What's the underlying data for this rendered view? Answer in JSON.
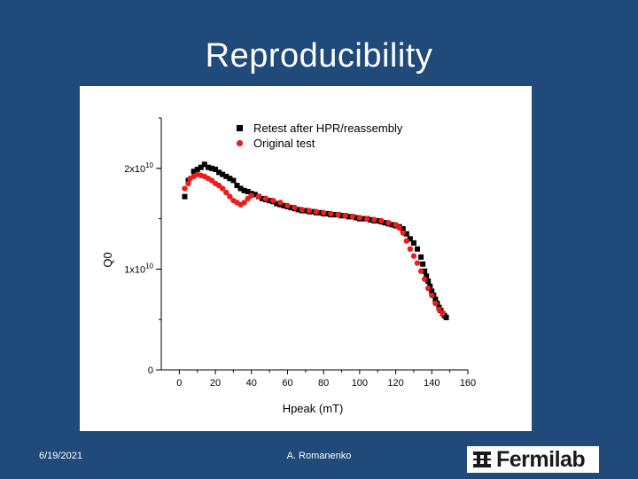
{
  "slide": {
    "title": "Reproducibility",
    "footer_date": "6/19/2021",
    "footer_author": "A. Romanenko",
    "logo_text": "Fermilab"
  },
  "colors": {
    "background": "#1f4a7a",
    "retest": "#000000",
    "original": "#ee1c1c"
  },
  "chart_data": {
    "type": "scatter",
    "xlabel": "Hpeak (mT)",
    "ylabel": "Q0",
    "xlim": [
      -10,
      160
    ],
    "ylim": [
      0,
      25000000000.0
    ],
    "x_ticks": [
      0,
      20,
      40,
      60,
      80,
      100,
      120,
      140,
      160
    ],
    "y_ticks": [
      {
        "value": 0,
        "mantissa": "0",
        "exp": ""
      },
      {
        "value": 10000000000.0,
        "mantissa": "1x10",
        "exp": "10"
      },
      {
        "value": 20000000000.0,
        "mantissa": "2x10",
        "exp": "10"
      }
    ],
    "legend_position": "top-left",
    "grid": false,
    "series": [
      {
        "name": "Retest after HPR/reassembly",
        "marker": "square",
        "color": "#000000",
        "points": [
          [
            3,
            17200000000.0
          ],
          [
            5,
            18800000000.0
          ],
          [
            8,
            19700000000.0
          ],
          [
            10,
            19900000000.0
          ],
          [
            12,
            20100000000.0
          ],
          [
            14,
            20400000000.0
          ],
          [
            16,
            20100000000.0
          ],
          [
            18,
            20000000000.0
          ],
          [
            20,
            19900000000.0
          ],
          [
            22,
            19600000000.0
          ],
          [
            24,
            19400000000.0
          ],
          [
            26,
            19200000000.0
          ],
          [
            28,
            19000000000.0
          ],
          [
            30,
            18800000000.0
          ],
          [
            32,
            18300000000.0
          ],
          [
            34,
            18000000000.0
          ],
          [
            36,
            17800000000.0
          ],
          [
            38,
            17700000000.0
          ],
          [
            40,
            17500000000.0
          ],
          [
            42,
            17400000000.0
          ],
          [
            44,
            17200000000.0
          ],
          [
            46,
            17000000000.0
          ],
          [
            48,
            16900000000.0
          ],
          [
            50,
            16800000000.0
          ],
          [
            52,
            16700000000.0
          ],
          [
            54,
            16500000000.0
          ],
          [
            56,
            16400000000.0
          ],
          [
            58,
            16300000000.0
          ],
          [
            60,
            16200000000.0
          ],
          [
            62,
            16100000000.0
          ],
          [
            64,
            16000000000.0
          ],
          [
            66,
            15900000000.0
          ],
          [
            68,
            15800000000.0
          ],
          [
            70,
            15800000000.0
          ],
          [
            72,
            15700000000.0
          ],
          [
            74,
            15700000000.0
          ],
          [
            76,
            15600000000.0
          ],
          [
            78,
            15600000000.0
          ],
          [
            80,
            15500000000.0
          ],
          [
            82,
            15500000000.0
          ],
          [
            84,
            15400000000.0
          ],
          [
            86,
            15400000000.0
          ],
          [
            88,
            15400000000.0
          ],
          [
            90,
            15300000000.0
          ],
          [
            92,
            15300000000.0
          ],
          [
            94,
            15200000000.0
          ],
          [
            96,
            15200000000.0
          ],
          [
            98,
            15100000000.0
          ],
          [
            100,
            15000000000.0
          ],
          [
            102,
            15000000000.0
          ],
          [
            104,
            15000000000.0
          ],
          [
            106,
            14900000000.0
          ],
          [
            108,
            14800000000.0
          ],
          [
            110,
            14800000000.0
          ],
          [
            112,
            14700000000.0
          ],
          [
            114,
            14600000000.0
          ],
          [
            116,
            14500000000.0
          ],
          [
            118,
            14400000000.0
          ],
          [
            120,
            14300000000.0
          ],
          [
            122,
            14200000000.0
          ],
          [
            124,
            14000000000.0
          ],
          [
            126,
            13500000000.0
          ],
          [
            128,
            13000000000.0
          ],
          [
            130,
            12600000000.0
          ],
          [
            132,
            12000000000.0
          ],
          [
            134,
            11200000000.0
          ],
          [
            135,
            10500000000.0
          ],
          [
            136,
            9800000000.0
          ],
          [
            137,
            9300000000.0
          ],
          [
            138,
            8800000000.0
          ],
          [
            139,
            8300000000.0
          ],
          [
            140,
            7800000000.0
          ],
          [
            141,
            7400000000.0
          ],
          [
            142,
            7000000000.0
          ],
          [
            143,
            6600000000.0
          ],
          [
            144,
            6200000000.0
          ],
          [
            145,
            5900000000.0
          ],
          [
            146,
            5600000000.0
          ],
          [
            147,
            5400000000.0
          ],
          [
            148,
            5200000000.0
          ]
        ]
      },
      {
        "name": "Original test",
        "marker": "circle",
        "color": "#ee1c1c",
        "points": [
          [
            3,
            18000000000.0
          ],
          [
            5,
            18500000000.0
          ],
          [
            6,
            19000000000.0
          ],
          [
            8,
            19200000000.0
          ],
          [
            10,
            19400000000.0
          ],
          [
            12,
            19300000000.0
          ],
          [
            14,
            19200000000.0
          ],
          [
            16,
            19000000000.0
          ],
          [
            18,
            18800000000.0
          ],
          [
            20,
            18500000000.0
          ],
          [
            22,
            18300000000.0
          ],
          [
            24,
            18000000000.0
          ],
          [
            26,
            17600000000.0
          ],
          [
            28,
            17200000000.0
          ],
          [
            30,
            16800000000.0
          ],
          [
            32,
            16600000000.0
          ],
          [
            34,
            16400000000.0
          ],
          [
            36,
            16600000000.0
          ],
          [
            38,
            17000000000.0
          ],
          [
            40,
            17300000000.0
          ],
          [
            44,
            17200000000.0
          ],
          [
            48,
            17000000000.0
          ],
          [
            52,
            16800000000.0
          ],
          [
            56,
            16600000000.0
          ],
          [
            60,
            16300000000.0
          ],
          [
            64,
            16100000000.0
          ],
          [
            68,
            15900000000.0
          ],
          [
            72,
            15800000000.0
          ],
          [
            76,
            15700000000.0
          ],
          [
            80,
            15600000000.0
          ],
          [
            84,
            15500000000.0
          ],
          [
            88,
            15400000000.0
          ],
          [
            92,
            15300000000.0
          ],
          [
            96,
            15200000000.0
          ],
          [
            100,
            15100000000.0
          ],
          [
            104,
            15000000000.0
          ],
          [
            108,
            14900000000.0
          ],
          [
            112,
            14800000000.0
          ],
          [
            116,
            14600000000.0
          ],
          [
            120,
            14400000000.0
          ],
          [
            122,
            14100000000.0
          ],
          [
            124,
            13600000000.0
          ],
          [
            126,
            12800000000.0
          ],
          [
            128,
            12000000000.0
          ],
          [
            130,
            11300000000.0
          ],
          [
            132,
            10600000000.0
          ],
          [
            134,
            9800000000.0
          ],
          [
            136,
            9000000000.0
          ],
          [
            138,
            8100000000.0
          ],
          [
            140,
            7400000000.0
          ],
          [
            142,
            6600000000.0
          ],
          [
            144,
            6000000000.0
          ],
          [
            146,
            5600000000.0
          ]
        ]
      }
    ]
  }
}
